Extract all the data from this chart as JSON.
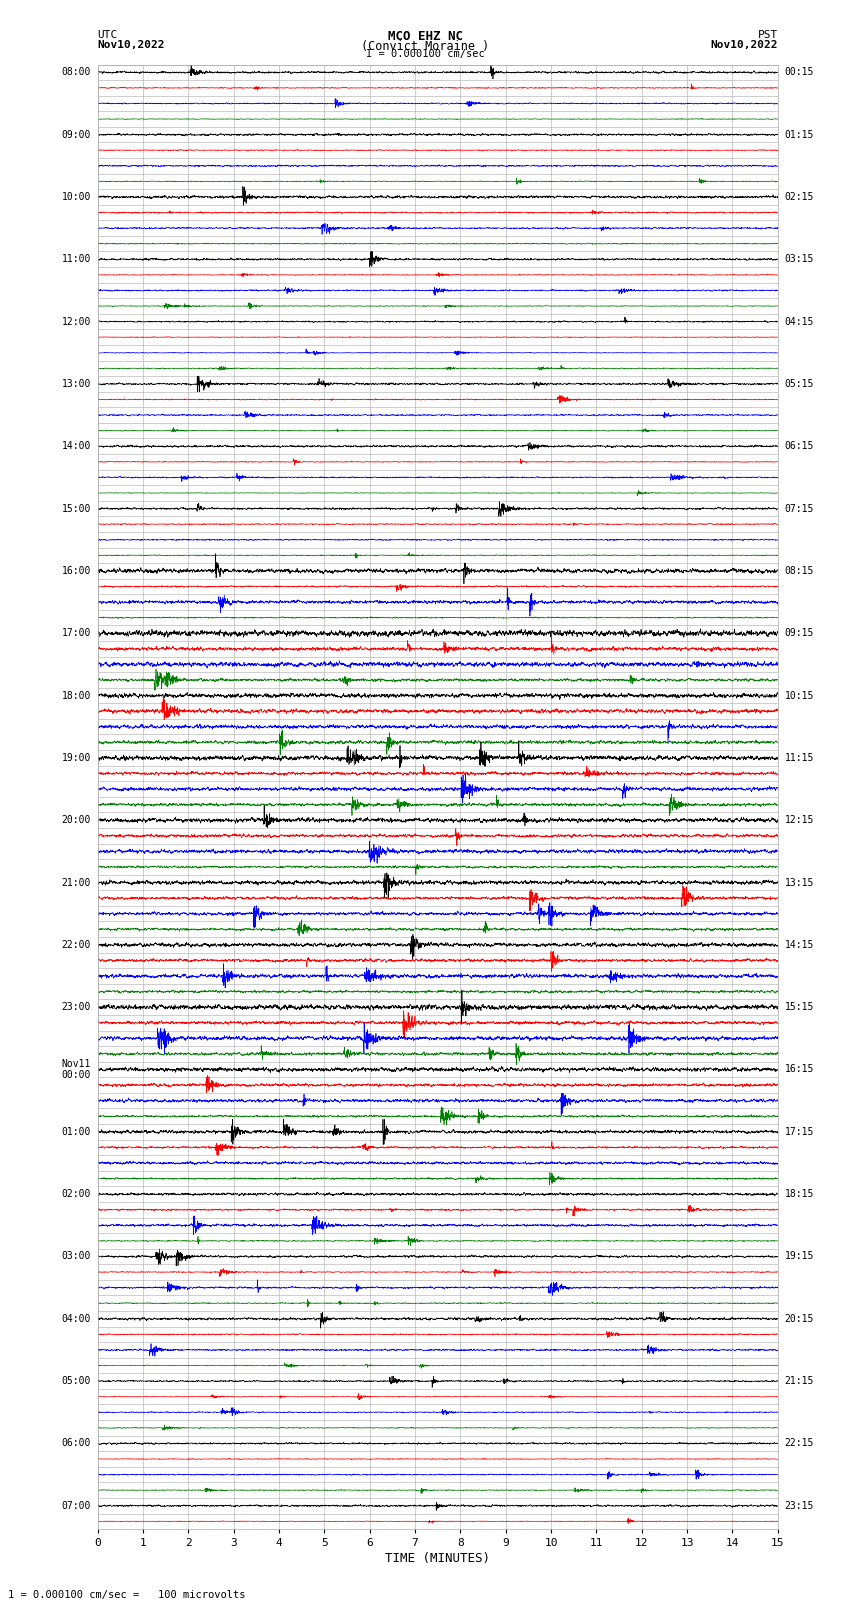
{
  "title_line1": "MCO EHZ NC",
  "title_line2": "(Convict Moraine )",
  "title_line3": "I = 0.000100 cm/sec",
  "utc_label": "UTC",
  "utc_date": "Nov10,2022",
  "pst_label": "PST",
  "pst_date": "Nov10,2022",
  "xlabel": "TIME (MINUTES)",
  "footer": "1 = 0.000100 cm/sec =   100 microvolts",
  "figsize": [
    8.5,
    16.13
  ],
  "dpi": 100,
  "bg_color": "#ffffff",
  "trace_colors": [
    "black",
    "red",
    "blue",
    "green"
  ],
  "minutes_per_trace": 15,
  "xlim": [
    0,
    15
  ],
  "xticks": [
    0,
    1,
    2,
    3,
    4,
    5,
    6,
    7,
    8,
    9,
    10,
    11,
    12,
    13,
    14,
    15
  ],
  "left_labels": [
    "08:00",
    "",
    "",
    "",
    "09:00",
    "",
    "",
    "",
    "10:00",
    "",
    "",
    "",
    "11:00",
    "",
    "",
    "",
    "12:00",
    "",
    "",
    "",
    "13:00",
    "",
    "",
    "",
    "14:00",
    "",
    "",
    "",
    "15:00",
    "",
    "",
    "",
    "16:00",
    "",
    "",
    "",
    "17:00",
    "",
    "",
    "",
    "18:00",
    "",
    "",
    "",
    "19:00",
    "",
    "",
    "",
    "20:00",
    "",
    "",
    "",
    "21:00",
    "",
    "",
    "",
    "22:00",
    "",
    "",
    "",
    "23:00",
    "",
    "",
    "",
    "Nov11\n00:00",
    "",
    "",
    "",
    "01:00",
    "",
    "",
    "",
    "02:00",
    "",
    "",
    "",
    "03:00",
    "",
    "",
    "",
    "04:00",
    "",
    "",
    "",
    "05:00",
    "",
    "",
    "",
    "06:00",
    "",
    "",
    "",
    "07:00",
    ""
  ],
  "right_labels": [
    "00:15",
    "",
    "",
    "",
    "01:15",
    "",
    "",
    "",
    "02:15",
    "",
    "",
    "",
    "03:15",
    "",
    "",
    "",
    "04:15",
    "",
    "",
    "",
    "05:15",
    "",
    "",
    "",
    "06:15",
    "",
    "",
    "",
    "07:15",
    "",
    "",
    "",
    "08:15",
    "",
    "",
    "",
    "09:15",
    "",
    "",
    "",
    "10:15",
    "",
    "",
    "",
    "11:15",
    "",
    "",
    "",
    "12:15",
    "",
    "",
    "",
    "13:15",
    "",
    "",
    "",
    "14:15",
    "",
    "",
    "",
    "15:15",
    "",
    "",
    "",
    "16:15",
    "",
    "",
    "",
    "17:15",
    "",
    "",
    "",
    "18:15",
    "",
    "",
    "",
    "19:15",
    "",
    "",
    "",
    "20:15",
    "",
    "",
    "",
    "21:15",
    "",
    "",
    "",
    "22:15",
    "",
    "",
    "",
    "23:15",
    ""
  ],
  "grid_color": "#aaaaaa",
  "grid_lw": 0.4,
  "trace_lw": 0.5,
  "amplitude_row_scales": [
    0.12,
    0.05,
    0.06,
    0.04,
    0.1,
    0.05,
    0.07,
    0.04,
    0.14,
    0.06,
    0.08,
    0.05,
    0.1,
    0.04,
    0.06,
    0.04,
    0.08,
    0.04,
    0.05,
    0.04,
    0.1,
    0.05,
    0.07,
    0.04,
    0.1,
    0.04,
    0.07,
    0.04,
    0.1,
    0.05,
    0.06,
    0.04,
    0.22,
    0.1,
    0.18,
    0.08,
    0.28,
    0.18,
    0.24,
    0.14,
    0.26,
    0.2,
    0.22,
    0.16,
    0.22,
    0.16,
    0.2,
    0.14,
    0.2,
    0.14,
    0.18,
    0.12,
    0.22,
    0.16,
    0.18,
    0.14,
    0.2,
    0.14,
    0.18,
    0.12,
    0.22,
    0.18,
    0.2,
    0.14,
    0.2,
    0.14,
    0.18,
    0.12,
    0.16,
    0.1,
    0.14,
    0.08,
    0.14,
    0.08,
    0.12,
    0.06,
    0.12,
    0.06,
    0.1,
    0.05,
    0.12,
    0.05,
    0.08,
    0.04,
    0.1,
    0.04,
    0.06,
    0.04,
    0.08,
    0.04,
    0.06,
    0.04,
    0.1,
    0.04
  ]
}
